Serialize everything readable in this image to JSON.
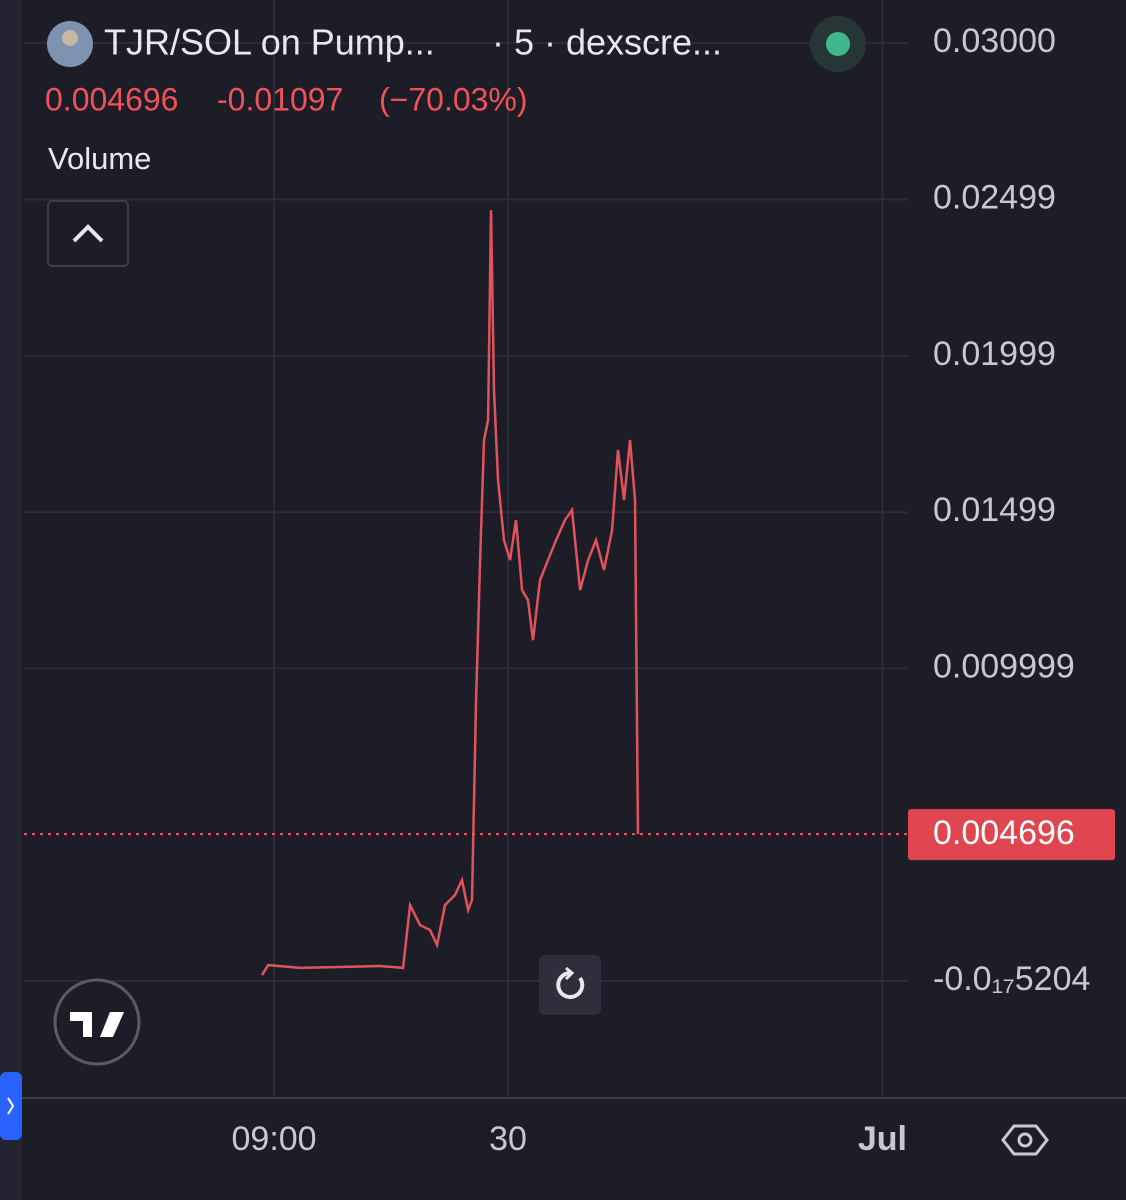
{
  "header": {
    "pair": "TJR/SOL on Pump...",
    "info": "· 5 · dexscre...",
    "change_pct": "(−70.03%)",
    "indicator": "Volume"
  },
  "chart_data": {
    "type": "line",
    "color": "#e0535c",
    "current_price": 0.004696,
    "change": -0.01097,
    "x": [
      -15.77,
      -15.38,
      -13.33,
      -10.77,
      -8.21,
      -6.73,
      -6.28,
      -5.64,
      -5.0,
      -4.55,
      -4.04,
      -3.4,
      -2.95,
      -2.56,
      -2.31,
      -2.05,
      -1.79,
      -1.54,
      -1.28,
      -1.09,
      -0.9,
      -0.64,
      -0.26,
      0.13,
      0.51,
      0.9,
      1.28,
      1.6,
      2.05,
      2.56,
      3.08,
      3.65,
      4.1,
      4.62,
      5.13,
      5.64,
      6.15,
      6.67,
      7.05,
      7.44,
      7.82,
      8.14,
      8.33
    ],
    "values": [
      0.00019,
      0.00051,
      0.00042,
      0.00045,
      0.00048,
      0.00042,
      0.00243,
      0.00179,
      0.00163,
      0.00115,
      0.00243,
      0.00275,
      0.00323,
      0.00227,
      0.00259,
      0.00898,
      0.01346,
      0.0173,
      0.01793,
      0.02465,
      0.01889,
      0.01602,
      0.0141,
      0.01346,
      0.01474,
      0.0125,
      0.01218,
      0.0109,
      0.01282,
      0.01346,
      0.0141,
      0.01474,
      0.01506,
      0.0125,
      0.01346,
      0.0141,
      0.01314,
      0.01442,
      0.01698,
      0.01538,
      0.0173,
      0.01538,
      0.004696
    ],
    "xlim": [
      -31.03,
      25.64
    ],
    "xticks": [
      {
        "value": -15,
        "label": "09:00"
      },
      {
        "value": 0,
        "label": "30"
      },
      {
        "value": 24,
        "label": "Jul"
      }
    ],
    "ylim": [
      -0.00374,
      0.03137
    ],
    "yticks": [
      {
        "value": 0.03,
        "label": "0.03000"
      },
      0.02499,
      0.01999,
      0.01499,
      0.009999,
      {
        "value": -5.204e-18,
        "label": "-0.0₁₇5204"
      }
    ],
    "grid": true
  }
}
